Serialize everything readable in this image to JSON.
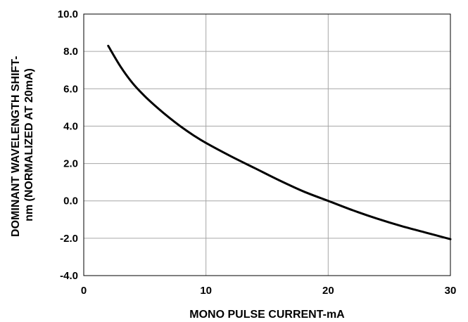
{
  "chart_data": {
    "type": "line",
    "xlabel": "MONO PULSE CURRENT-mA",
    "ylabel_lines": [
      "DOMINANT WAVELENGTH SHIFT-",
      "nm (NORMALIZED AT 20mA)"
    ],
    "xlim": [
      0,
      30
    ],
    "ylim": [
      -4.0,
      10.0
    ],
    "x_ticks": [
      0,
      10,
      20,
      30
    ],
    "x_tick_labels": [
      "0",
      "10",
      "20",
      "30"
    ],
    "y_ticks": [
      -4,
      -2,
      0,
      2,
      4,
      6,
      8,
      10
    ],
    "y_tick_labels": [
      "-4.0",
      "-2.0",
      "0.0",
      "2.0",
      "4.0",
      "6.0",
      "8.0",
      "10.0"
    ],
    "grid": true,
    "series": [
      {
        "color": "#000000",
        "x": [
          2,
          3,
          4,
          5,
          6,
          7,
          8,
          9,
          10,
          12,
          14,
          16,
          18,
          20,
          22,
          24,
          26,
          28,
          30
        ],
        "y": [
          8.3,
          7.2,
          6.3,
          5.6,
          5.0,
          4.45,
          3.95,
          3.5,
          3.1,
          2.4,
          1.75,
          1.1,
          0.5,
          0.0,
          -0.5,
          -0.95,
          -1.35,
          -1.7,
          -2.05
        ]
      }
    ]
  }
}
